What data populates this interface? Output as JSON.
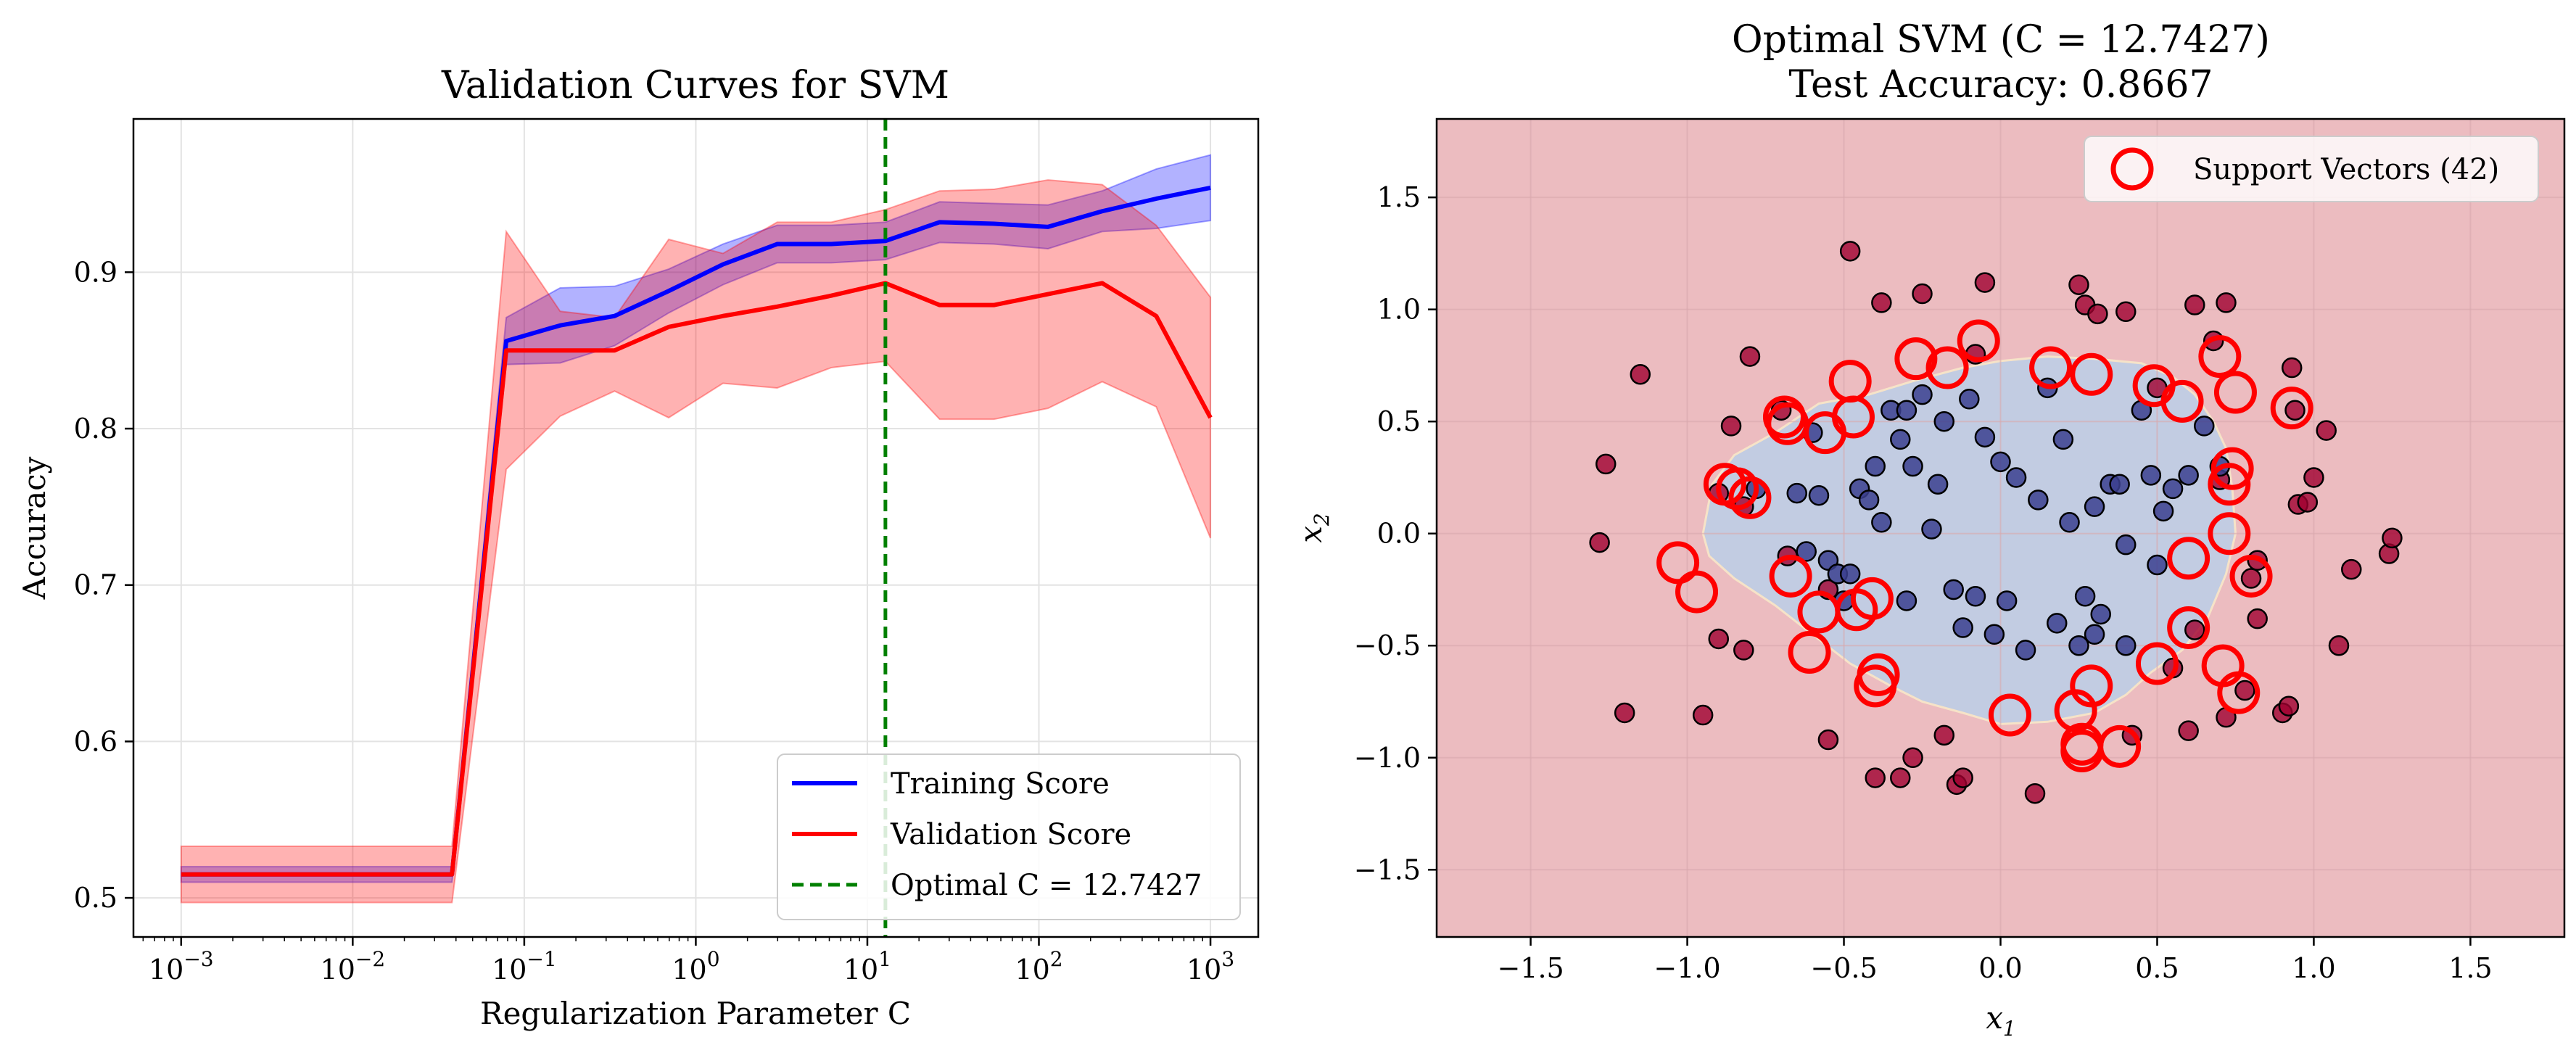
{
  "colors": {
    "train": "#0000ff",
    "validation": "#ff0000",
    "optimal": "#008000",
    "class_outer": "#a00030",
    "class_inner": "#3b3f8f",
    "region_outer": "#ecbcc0",
    "region_inner": "#c2cce2",
    "support": "#ff0000"
  },
  "chart_data": [
    {
      "type": "line",
      "title": "Validation Curves for SVM",
      "xlabel": "Regularization Parameter C",
      "ylabel": "Accuracy",
      "xscale": "log",
      "xlim": [
        0.000527,
        1900
      ],
      "ylim": [
        0.475,
        0.998
      ],
      "xticks": [
        {
          "base": "10",
          "exp": "−3",
          "value": 0.001
        },
        {
          "base": "10",
          "exp": "−2",
          "value": 0.01
        },
        {
          "base": "10",
          "exp": "−1",
          "value": 0.1
        },
        {
          "base": "10",
          "exp": "0",
          "value": 1
        },
        {
          "base": "10",
          "exp": "1",
          "value": 10
        },
        {
          "base": "10",
          "exp": "2",
          "value": 100
        },
        {
          "base": "10",
          "exp": "3",
          "value": 1000
        }
      ],
      "yticks": [
        {
          "label": "0.5",
          "value": 0.5
        },
        {
          "label": "0.6",
          "value": 0.6
        },
        {
          "label": "0.7",
          "value": 0.7
        },
        {
          "label": "0.8",
          "value": 0.8
        },
        {
          "label": "0.9",
          "value": 0.9
        }
      ],
      "grid": true,
      "legend_position": "lower-right",
      "x": [
        0.001,
        0.00207,
        0.00428,
        0.00886,
        0.0183,
        0.0379,
        0.0785,
        0.162,
        0.336,
        0.695,
        1.44,
        2.98,
        6.16,
        12.74,
        26.4,
        54.6,
        113,
        234,
        483,
        1000
      ],
      "series": [
        {
          "name": "Training Score",
          "values": [
            0.515,
            0.515,
            0.515,
            0.515,
            0.515,
            0.515,
            0.856,
            0.866,
            0.872,
            0.888,
            0.905,
            0.918,
            0.918,
            0.92,
            0.932,
            0.931,
            0.929,
            0.939,
            0.947,
            0.954
          ],
          "upper": [
            0.52,
            0.52,
            0.52,
            0.52,
            0.52,
            0.52,
            0.871,
            0.89,
            0.891,
            0.902,
            0.918,
            0.93,
            0.93,
            0.932,
            0.945,
            0.944,
            0.943,
            0.952,
            0.966,
            0.975
          ],
          "lower": [
            0.51,
            0.51,
            0.51,
            0.51,
            0.51,
            0.51,
            0.841,
            0.842,
            0.853,
            0.874,
            0.892,
            0.906,
            0.906,
            0.908,
            0.919,
            0.918,
            0.915,
            0.926,
            0.928,
            0.933
          ]
        },
        {
          "name": "Validation Score",
          "values": [
            0.515,
            0.515,
            0.515,
            0.515,
            0.515,
            0.515,
            0.85,
            0.85,
            0.85,
            0.865,
            0.872,
            0.878,
            0.885,
            0.893,
            0.879,
            0.879,
            0.886,
            0.893,
            0.872,
            0.807
          ],
          "upper": [
            0.533,
            0.533,
            0.533,
            0.533,
            0.533,
            0.533,
            0.926,
            0.875,
            0.871,
            0.921,
            0.912,
            0.932,
            0.932,
            0.94,
            0.952,
            0.953,
            0.959,
            0.956,
            0.93,
            0.884
          ],
          "lower": [
            0.497,
            0.497,
            0.497,
            0.497,
            0.497,
            0.497,
            0.774,
            0.808,
            0.824,
            0.807,
            0.829,
            0.826,
            0.839,
            0.843,
            0.806,
            0.806,
            0.813,
            0.83,
            0.814,
            0.73
          ]
        }
      ],
      "optimal": {
        "value": 12.7427,
        "label": "Optimal C = 12.7427"
      }
    },
    {
      "type": "scatter",
      "title": "Optimal SVM (C = 12.7427)",
      "subtitle": "Test Accuracy: 0.8667",
      "xlabel": "x",
      "xlabel_sub": "1",
      "ylabel": "x",
      "ylabel_sub": "2",
      "xlim": [
        -1.8,
        1.8
      ],
      "ylim": [
        -1.8,
        1.85
      ],
      "xticks": [
        {
          "label": "−1.5",
          "value": -1.5
        },
        {
          "label": "−1.0",
          "value": -1.0
        },
        {
          "label": "−0.5",
          "value": -0.5
        },
        {
          "label": "0.0",
          "value": 0.0
        },
        {
          "label": "0.5",
          "value": 0.5
        },
        {
          "label": "1.0",
          "value": 1.0
        },
        {
          "label": "1.5",
          "value": 1.5
        }
      ],
      "yticks": [
        {
          "label": "−1.5",
          "value": -1.5
        },
        {
          "label": "−1.0",
          "value": -1.0
        },
        {
          "label": "−0.5",
          "value": -0.5
        },
        {
          "label": "0.0",
          "value": 0.0
        },
        {
          "label": "0.5",
          "value": 0.5
        },
        {
          "label": "1.0",
          "value": 1.0
        },
        {
          "label": "1.5",
          "value": 1.5
        }
      ],
      "grid": true,
      "legend_position": "upper-right",
      "legend_label": "Support Vectors (42)",
      "boundary": [
        [
          -0.95,
          0.0
        ],
        [
          -0.92,
          0.22
        ],
        [
          -0.85,
          0.35
        ],
        [
          -0.72,
          0.45
        ],
        [
          -0.58,
          0.58
        ],
        [
          -0.42,
          0.62
        ],
        [
          -0.28,
          0.68
        ],
        [
          -0.12,
          0.74
        ],
        [
          0.0,
          0.77
        ],
        [
          0.15,
          0.79
        ],
        [
          0.3,
          0.78
        ],
        [
          0.45,
          0.76
        ],
        [
          0.55,
          0.7
        ],
        [
          0.62,
          0.62
        ],
        [
          0.68,
          0.5
        ],
        [
          0.72,
          0.38
        ],
        [
          0.74,
          0.2
        ],
        [
          0.75,
          0.0
        ],
        [
          0.72,
          -0.18
        ],
        [
          0.66,
          -0.38
        ],
        [
          0.58,
          -0.52
        ],
        [
          0.48,
          -0.62
        ],
        [
          0.4,
          -0.72
        ],
        [
          0.3,
          -0.8
        ],
        [
          0.15,
          -0.84
        ],
        [
          0.0,
          -0.85
        ],
        [
          -0.12,
          -0.8
        ],
        [
          -0.25,
          -0.75
        ],
        [
          -0.35,
          -0.68
        ],
        [
          -0.48,
          -0.58
        ],
        [
          -0.6,
          -0.45
        ],
        [
          -0.72,
          -0.32
        ],
        [
          -0.85,
          -0.2
        ],
        [
          -0.93,
          -0.1
        ]
      ],
      "class_outer": [
        [
          -1.28,
          -0.04
        ],
        [
          -1.26,
          0.31
        ],
        [
          -1.15,
          0.71
        ],
        [
          -1.2,
          -0.8
        ],
        [
          -0.95,
          -0.81
        ],
        [
          -0.9,
          -0.47
        ],
        [
          -0.82,
          -0.52
        ],
        [
          -0.8,
          0.79
        ],
        [
          -0.86,
          0.48
        ],
        [
          -0.7,
          0.55
        ],
        [
          -0.68,
          -0.1
        ],
        [
          -0.55,
          -0.92
        ],
        [
          -0.55,
          -0.25
        ],
        [
          -0.48,
          1.26
        ],
        [
          -0.38,
          1.03
        ],
        [
          -0.4,
          -1.09
        ],
        [
          -0.32,
          -1.09
        ],
        [
          -0.28,
          -1.0
        ],
        [
          -0.25,
          1.07
        ],
        [
          -0.18,
          -0.9
        ],
        [
          -0.14,
          -1.12
        ],
        [
          -0.12,
          -1.09
        ],
        [
          -0.08,
          0.8
        ],
        [
          -0.05,
          1.12
        ],
        [
          0.11,
          -1.16
        ],
        [
          0.25,
          1.11
        ],
        [
          0.27,
          1.02
        ],
        [
          0.31,
          0.98
        ],
        [
          0.4,
          0.99
        ],
        [
          0.42,
          -0.9
        ],
        [
          0.5,
          0.65
        ],
        [
          0.55,
          -0.6
        ],
        [
          0.6,
          -0.88
        ],
        [
          0.62,
          1.02
        ],
        [
          0.68,
          0.86
        ],
        [
          0.72,
          1.03
        ],
        [
          0.72,
          -0.82
        ],
        [
          0.7,
          0.24
        ],
        [
          0.62,
          -0.43
        ],
        [
          0.78,
          -0.7
        ],
        [
          0.8,
          -0.2
        ],
        [
          0.82,
          -0.12
        ],
        [
          0.82,
          -0.38
        ],
        [
          0.9,
          -0.8
        ],
        [
          0.92,
          -0.77
        ],
        [
          0.93,
          0.74
        ],
        [
          0.94,
          0.55
        ],
        [
          0.95,
          0.13
        ],
        [
          0.98,
          0.14
        ],
        [
          1.0,
          0.25
        ],
        [
          1.04,
          0.46
        ],
        [
          1.08,
          -0.5
        ],
        [
          1.12,
          -0.16
        ],
        [
          1.24,
          -0.09
        ],
        [
          1.25,
          -0.02
        ],
        [
          -0.9,
          0.18
        ],
        [
          -0.82,
          0.12
        ]
      ],
      "class_inner": [
        [
          -0.78,
          0.2
        ],
        [
          -0.65,
          0.18
        ],
        [
          -0.62,
          -0.08
        ],
        [
          -0.58,
          0.17
        ],
        [
          -0.55,
          -0.12
        ],
        [
          -0.52,
          -0.18
        ],
        [
          -0.5,
          -0.3
        ],
        [
          -0.48,
          -0.18
        ],
        [
          -0.45,
          0.2
        ],
        [
          -0.42,
          0.15
        ],
        [
          -0.4,
          0.3
        ],
        [
          -0.38,
          0.05
        ],
        [
          -0.35,
          0.55
        ],
        [
          -0.32,
          0.42
        ],
        [
          -0.3,
          -0.3
        ],
        [
          -0.28,
          0.3
        ],
        [
          -0.25,
          0.62
        ],
        [
          -0.22,
          0.02
        ],
        [
          -0.2,
          0.22
        ],
        [
          -0.18,
          0.5
        ],
        [
          -0.15,
          -0.25
        ],
        [
          -0.12,
          -0.42
        ],
        [
          -0.1,
          0.6
        ],
        [
          -0.08,
          -0.28
        ],
        [
          -0.05,
          0.43
        ],
        [
          -0.02,
          -0.45
        ],
        [
          0.0,
          0.32
        ],
        [
          0.02,
          -0.3
        ],
        [
          0.05,
          0.25
        ],
        [
          0.08,
          -0.52
        ],
        [
          0.12,
          0.15
        ],
        [
          0.15,
          0.65
        ],
        [
          0.18,
          -0.4
        ],
        [
          0.2,
          0.42
        ],
        [
          0.22,
          0.05
        ],
        [
          0.25,
          -0.5
        ],
        [
          0.27,
          -0.28
        ],
        [
          0.3,
          -0.45
        ],
        [
          0.3,
          0.12
        ],
        [
          0.32,
          -0.36
        ],
        [
          0.35,
          0.22
        ],
        [
          0.38,
          0.22
        ],
        [
          0.4,
          -0.05
        ],
        [
          0.4,
          -0.5
        ],
        [
          0.45,
          0.55
        ],
        [
          0.48,
          0.26
        ],
        [
          0.5,
          -0.14
        ],
        [
          0.52,
          0.1
        ],
        [
          0.55,
          0.2
        ],
        [
          0.6,
          0.26
        ],
        [
          0.65,
          0.48
        ],
        [
          0.7,
          0.3
        ],
        [
          -0.3,
          0.55
        ],
        [
          -0.6,
          0.45
        ]
      ],
      "support_vectors": [
        [
          -1.03,
          -0.13
        ],
        [
          -0.97,
          -0.26
        ],
        [
          -0.88,
          0.22
        ],
        [
          -0.84,
          0.2
        ],
        [
          -0.8,
          0.16
        ],
        [
          -0.69,
          0.52
        ],
        [
          -0.68,
          0.49
        ],
        [
          -0.67,
          -0.19
        ],
        [
          -0.61,
          -0.53
        ],
        [
          -0.58,
          -0.35
        ],
        [
          -0.56,
          0.45
        ],
        [
          -0.48,
          0.68
        ],
        [
          -0.47,
          0.52
        ],
        [
          -0.46,
          -0.34
        ],
        [
          -0.41,
          -0.29
        ],
        [
          -0.4,
          -0.68
        ],
        [
          -0.39,
          -0.63
        ],
        [
          -0.27,
          0.78
        ],
        [
          -0.17,
          0.74
        ],
        [
          -0.07,
          0.86
        ],
        [
          0.03,
          -0.81
        ],
        [
          0.16,
          0.74
        ],
        [
          0.24,
          -0.79
        ],
        [
          0.26,
          -0.94
        ],
        [
          0.26,
          -0.97
        ],
        [
          0.29,
          0.71
        ],
        [
          0.29,
          -0.68
        ],
        [
          0.38,
          -0.95
        ],
        [
          0.49,
          0.66
        ],
        [
          0.58,
          0.59
        ],
        [
          0.6,
          -0.11
        ],
        [
          0.6,
          -0.42
        ],
        [
          0.7,
          0.79
        ],
        [
          0.71,
          -0.59
        ],
        [
          0.73,
          0.22
        ],
        [
          0.73,
          0.0
        ],
        [
          0.74,
          0.29
        ],
        [
          0.75,
          0.63
        ],
        [
          0.76,
          -0.71
        ],
        [
          0.8,
          -0.19
        ],
        [
          0.93,
          0.56
        ],
        [
          0.5,
          -0.58
        ]
      ]
    }
  ]
}
